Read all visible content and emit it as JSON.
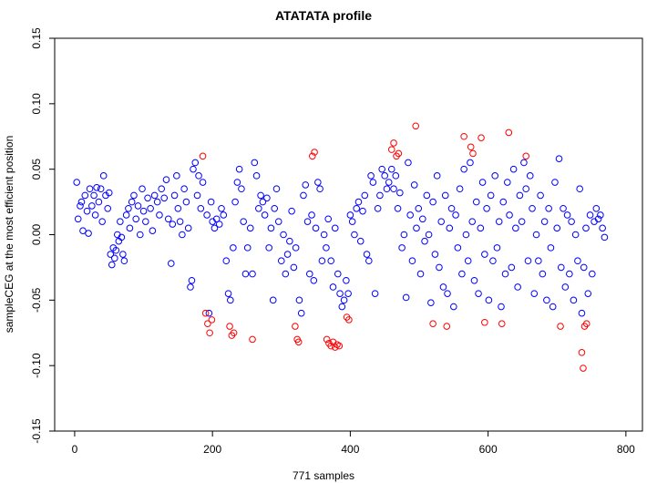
{
  "chart_data": {
    "type": "scatter",
    "title": "ATATATA profile",
    "x_label": "771 samples",
    "y_label": "sampleCEG at the most efficient position",
    "xlim": [
      -29,
      824
    ],
    "ylim": [
      -0.15,
      0.15
    ],
    "xticks": [
      0,
      200,
      400,
      600,
      800
    ],
    "yticks": [
      -0.15,
      {
        "value": -0.1,
        "label": "-0.10"
      },
      -0.05,
      {
        "value": 0,
        "label": "0.00"
      },
      0.05,
      {
        "value": 0.1,
        "label": "0.10"
      },
      0.15
    ],
    "grid": false,
    "series": [
      {
        "color": "#0000ff",
        "x": [
          3,
          5,
          8,
          10,
          12,
          15,
          18,
          20,
          22,
          25,
          28,
          30,
          32,
          35,
          38,
          40,
          42,
          45,
          48,
          50,
          52,
          54,
          56,
          58,
          60,
          62,
          64,
          66,
          68,
          70,
          72,
          75,
          78,
          80,
          83,
          86,
          89,
          92,
          95,
          98,
          100,
          103,
          106,
          110,
          113,
          116,
          120,
          123,
          126,
          130,
          133,
          136,
          140,
          142,
          145,
          148,
          150,
          153,
          156,
          159,
          162,
          165,
          168,
          170,
          172,
          175,
          178,
          180,
          183,
          186,
          192,
          195,
          198,
          200,
          203,
          206,
          210,
          213,
          216,
          220,
          223,
          226,
          230,
          233,
          236,
          239,
          242,
          245,
          248,
          251,
          255,
          258,
          261,
          264,
          267,
          270,
          273,
          276,
          279,
          282,
          285,
          288,
          290,
          293,
          296,
          300,
          303,
          306,
          309,
          312,
          315,
          318,
          321,
          326,
          329,
          332,
          335,
          338,
          341,
          344,
          347,
          350,
          353,
          356,
          359,
          362,
          365,
          368,
          372,
          375,
          378,
          382,
          385,
          388,
          391,
          394,
          397,
          400,
          403,
          406,
          409,
          412,
          415,
          418,
          421,
          424,
          427,
          430,
          433,
          436,
          440,
          443,
          446,
          450,
          453,
          456,
          460,
          463,
          466,
          469,
          472,
          475,
          478,
          481,
          484,
          487,
          490,
          493,
          496,
          499,
          502,
          505,
          508,
          511,
          514,
          517,
          520,
          523,
          526,
          529,
          532,
          535,
          538,
          541,
          544,
          547,
          550,
          553,
          556,
          559,
          562,
          565,
          568,
          571,
          574,
          577,
          580,
          583,
          586,
          589,
          592,
          595,
          598,
          601,
          604,
          607,
          610,
          613,
          616,
          619,
          622,
          625,
          628,
          631,
          634,
          637,
          640,
          643,
          646,
          649,
          652,
          655,
          658,
          661,
          664,
          667,
          670,
          673,
          676,
          679,
          682,
          685,
          688,
          691,
          694,
          697,
          700,
          703,
          706,
          709,
          712,
          715,
          718,
          721,
          724,
          727,
          730,
          733,
          736,
          739,
          742,
          745,
          748,
          751,
          754,
          757,
          760,
          763,
          766,
          769
        ],
        "values": [
          0.04,
          0.012,
          0.022,
          0.025,
          0.003,
          0.03,
          0.018,
          0.001,
          0.035,
          0.022,
          0.03,
          0.015,
          0.036,
          0.025,
          0.035,
          0.01,
          0.045,
          0.03,
          0.02,
          0.032,
          -0.015,
          -0.023,
          -0.01,
          -0.018,
          -0.012,
          0,
          -0.005,
          0.01,
          -0.002,
          -0.015,
          -0.02,
          0.015,
          0.02,
          0.005,
          0.025,
          0.03,
          0.012,
          0.022,
          0,
          0.035,
          0.018,
          0.01,
          0.028,
          0.02,
          0.003,
          0.03,
          0.025,
          0.015,
          0.035,
          0.028,
          0.042,
          0.012,
          -0.022,
          0.008,
          0.03,
          0.045,
          0.02,
          0.01,
          0,
          0.035,
          0.025,
          0.005,
          -0.04,
          -0.035,
          0.05,
          0.055,
          0.03,
          0.045,
          0.02,
          0.04,
          0.015,
          -0.06,
          0.025,
          0.01,
          0.005,
          0.012,
          0.008,
          0.02,
          0.015,
          -0.02,
          -0.045,
          -0.05,
          -0.01,
          0.025,
          0.04,
          0.05,
          0.035,
          0.01,
          -0.03,
          -0.01,
          0.005,
          -0.03,
          0.055,
          0.045,
          0.02,
          0.03,
          0.025,
          0.015,
          0.028,
          -0.01,
          0.005,
          -0.05,
          0.02,
          0.035,
          0.01,
          -0.02,
          0,
          -0.03,
          -0.015,
          -0.005,
          0.018,
          -0.025,
          -0.01,
          -0.05,
          -0.06,
          0.03,
          0.038,
          0.01,
          -0.03,
          0.015,
          -0.035,
          0.005,
          0.04,
          0.035,
          -0.02,
          0,
          -0.01,
          0.012,
          -0.02,
          -0.04,
          0.005,
          -0.03,
          -0.045,
          -0.055,
          -0.05,
          -0.035,
          -0.045,
          0.015,
          0.01,
          0,
          0.02,
          0.025,
          -0.005,
          0.018,
          0.03,
          -0.015,
          -0.02,
          0.045,
          0.04,
          -0.045,
          0.02,
          0.03,
          0.05,
          0.045,
          0.035,
          0.04,
          0.05,
          0.035,
          0.045,
          0.02,
          0.032,
          -0.01,
          0,
          -0.048,
          0.055,
          0.015,
          -0.02,
          0.038,
          0.005,
          0.02,
          -0.03,
          0.012,
          -0.005,
          0.03,
          0,
          -0.052,
          0.025,
          -0.015,
          0.045,
          -0.025,
          0.01,
          -0.04,
          0.03,
          -0.045,
          0.005,
          0.02,
          -0.055,
          0.015,
          -0.01,
          0.035,
          -0.03,
          0.05,
          0,
          -0.02,
          0.055,
          0.01,
          -0.035,
          0.025,
          -0.045,
          0.005,
          0.04,
          -0.015,
          0.02,
          -0.05,
          0.03,
          -0.02,
          0.045,
          -0.01,
          0.01,
          -0.055,
          0.025,
          -0.03,
          0.04,
          0.015,
          -0.025,
          0.05,
          0.005,
          -0.04,
          0.03,
          0.01,
          0.055,
          0.035,
          -0.02,
          0.045,
          0.02,
          -0.045,
          0,
          -0.02,
          0.03,
          -0.03,
          0.01,
          -0.05,
          0.02,
          -0.01,
          -0.055,
          0.04,
          0.005,
          0.058,
          -0.025,
          0.02,
          -0.04,
          0.015,
          -0.03,
          0.01,
          -0.05,
          0,
          -0.02,
          0.035,
          -0.06,
          -0.025,
          0.005,
          -0.045,
          0.015,
          -0.03,
          0.01,
          0.02,
          0.012,
          0.015,
          0.005,
          -0.002
        ]
      },
      {
        "color": "#ff0000",
        "x": [
          186,
          190,
          193,
          196,
          199,
          225,
          228,
          231,
          258,
          320,
          323,
          325,
          345,
          348,
          366,
          369,
          372,
          375,
          378,
          381,
          384,
          395,
          398,
          460,
          463,
          467,
          470,
          495,
          520,
          540,
          565,
          575,
          578,
          590,
          595,
          620,
          630,
          655,
          705,
          736,
          738,
          740,
          743
        ],
        "values": [
          0.06,
          -0.06,
          -0.068,
          -0.075,
          -0.065,
          -0.07,
          -0.077,
          -0.075,
          -0.08,
          -0.07,
          -0.08,
          -0.082,
          0.06,
          0.063,
          -0.08,
          -0.083,
          -0.085,
          -0.082,
          -0.086,
          -0.084,
          -0.085,
          -0.063,
          -0.065,
          0.065,
          0.07,
          0.06,
          0.062,
          0.083,
          -0.068,
          -0.07,
          0.075,
          0.067,
          0.062,
          0.074,
          -0.067,
          -0.068,
          0.078,
          0.06,
          -0.07,
          -0.09,
          -0.102,
          -0.07,
          -0.068
        ]
      }
    ]
  }
}
